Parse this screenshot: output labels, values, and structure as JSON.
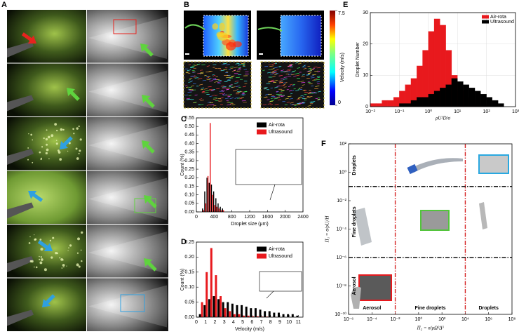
{
  "panel_labels": [
    "A",
    "B",
    "C",
    "D",
    "E",
    "F"
  ],
  "panel_b": {
    "colorbar_label": "Velocity (m/s)",
    "colorbar_ticks": [
      7.5,
      0
    ]
  },
  "chart_data": [
    {
      "type": "bar",
      "xlabel": "Droplet size (μm)",
      "ylabel": "Count (%)",
      "x": [
        150,
        200,
        250,
        300,
        350,
        400,
        450,
        500,
        550,
        600
      ],
      "series": [
        {
          "name": "Air-rota",
          "color": "#000000",
          "values": [
            0.02,
            0.12,
            0.2,
            0.17,
            0.16,
            0.12,
            0.08,
            0.05,
            0.03,
            0.02
          ]
        },
        {
          "name": "Ultrasound",
          "color": "#e8191d",
          "values": [
            0.01,
            0.05,
            0.21,
            0.52,
            0.1,
            0.04,
            0.03,
            0.02,
            0.01,
            0.01
          ]
        }
      ],
      "xlim": [
        0,
        2400
      ],
      "xticks": [
        0,
        400,
        800,
        1200,
        1600,
        2000,
        2400
      ],
      "ylim": [
        0,
        0.55
      ],
      "yticks": [
        {
          "value": 0,
          "label": "0.00"
        },
        {
          "value": 0.05,
          "label": "0.05"
        },
        {
          "value": 0.1,
          "label": "0.10"
        },
        {
          "value": 0.15,
          "label": "0.15"
        },
        {
          "value": 0.2,
          "label": "0.20"
        },
        {
          "value": 0.25,
          "label": "0.25"
        },
        {
          "value": 0.3,
          "label": "0.30"
        },
        {
          "value": 0.35,
          "label": "0.35"
        },
        {
          "value": 0.4,
          "label": "0.40"
        },
        {
          "value": 0.45,
          "label": "0.45"
        },
        {
          "value": 0.5,
          "label": "0.50"
        },
        {
          "value": 0.55,
          "label": "0.55"
        }
      ],
      "legend": "upper right"
    },
    {
      "type": "bar",
      "xlabel": "Velocity (m/s)",
      "ylabel": "Count (%)",
      "x": [
        0.5,
        1,
        1.5,
        2,
        2.5,
        3,
        3.5,
        4,
        4.5,
        5,
        5.5,
        6,
        6.5,
        7,
        7.5,
        8,
        8.5,
        9,
        9.5,
        10,
        10.5,
        11
      ],
      "series": [
        {
          "name": "Air-rota",
          "color": "#000000",
          "values": [
            0.01,
            0.04,
            0.06,
            0.07,
            0.06,
            0.05,
            0.05,
            0.045,
            0.04,
            0.04,
            0.035,
            0.03,
            0.03,
            0.025,
            0.02,
            0.02,
            0.015,
            0.015,
            0.01,
            0.01,
            0.01,
            0.005
          ]
        },
        {
          "name": "Ultrasound",
          "color": "#e8191d",
          "values": [
            0.05,
            0.15,
            0.23,
            0.14,
            0.07,
            0.03,
            0.02,
            0.01,
            0.01,
            0.005,
            0.005,
            0.003,
            0.003,
            0.002,
            0.002,
            0.001,
            0.001,
            0,
            0,
            0,
            0,
            0
          ]
        }
      ],
      "xlim": [
        0,
        11.5
      ],
      "xticks": [
        0,
        1,
        2,
        3,
        4,
        5,
        6,
        7,
        8,
        9,
        10,
        11
      ],
      "ylim": [
        0,
        0.25
      ],
      "yticks": [
        {
          "value": 0,
          "label": "0.00"
        },
        {
          "value": 0.05,
          "label": "0.05"
        },
        {
          "value": 0.1,
          "label": "0.10"
        },
        {
          "value": 0.15,
          "label": "0.15"
        },
        {
          "value": 0.2,
          "label": "0.20"
        },
        {
          "value": 0.25,
          "label": "0.25"
        }
      ],
      "legend": "upper right"
    },
    {
      "type": "histogram",
      "xlabel": "ρU²D/σ",
      "ylabel": "Droplet Number",
      "xscale": "log",
      "grid": true,
      "bins": [
        0.01,
        0.0158,
        0.0251,
        0.0398,
        0.0631,
        0.1,
        0.158,
        0.251,
        0.398,
        0.631,
        1,
        1.58,
        2.51,
        3.98,
        6.31,
        10,
        15.8,
        25.1,
        39.8,
        63.1,
        100,
        158,
        251,
        398
      ],
      "series": [
        {
          "name": "Air-rota",
          "color": "#e8191d",
          "values": [
            1,
            1,
            2,
            2,
            3,
            5,
            7,
            9,
            13,
            18,
            24,
            28,
            26,
            18,
            10,
            5,
            3,
            2,
            1,
            1,
            0,
            0,
            0
          ]
        },
        {
          "name": "Ultrasound",
          "color": "#000000",
          "values": [
            0,
            0,
            0,
            0,
            0,
            1,
            1,
            2,
            3,
            3,
            4,
            5,
            6,
            7,
            9,
            8,
            7,
            6,
            5,
            4,
            3,
            2,
            1
          ]
        }
      ],
      "xlim": [
        0.01,
        1000
      ],
      "xticks": [
        {
          "value": 0.01,
          "label": "10⁻²"
        },
        {
          "value": 0.1,
          "label": "10⁻¹"
        },
        {
          "value": 1,
          "label": "10⁰"
        },
        {
          "value": 10,
          "label": "10¹"
        },
        {
          "value": 100,
          "label": "10²"
        },
        {
          "value": 1000,
          "label": "10³"
        }
      ],
      "ylim": [
        0,
        30
      ],
      "yticks": [
        0,
        10,
        20,
        30
      ],
      "legend": "upper right"
    },
    {
      "type": "regime_map",
      "xlabel": "Π₂ = σ/ρΩ²Δ³",
      "ylabel": "Π₁ = σ/ρUⱼ²H",
      "xscale": "log",
      "yscale": "log",
      "xlim": [
        1e-06,
        100000000.0
      ],
      "xticks": [
        {
          "value": 1e-06,
          "label": "10⁻⁶"
        },
        {
          "value": 0.0001,
          "label": "10⁻⁴"
        },
        {
          "value": 0.01,
          "label": "10⁻²"
        },
        {
          "value": 1,
          "label": "10⁰"
        },
        {
          "value": 100,
          "label": "10²"
        },
        {
          "value": 10000,
          "label": "10⁴"
        },
        {
          "value": 1000000.0,
          "label": "10⁶"
        },
        {
          "value": 100000000.0,
          "label": "10⁸"
        }
      ],
      "ylim": [
        1e-10,
        100
      ],
      "yticks": [
        {
          "value": 1e-10,
          "label": "10⁻¹⁰"
        },
        {
          "value": 1e-08,
          "label": "10⁻⁸"
        },
        {
          "value": 1e-06,
          "label": "10⁻⁶"
        },
        {
          "value": 0.0001,
          "label": "10⁻⁴"
        },
        {
          "value": 0.01,
          "label": "10⁻²"
        },
        {
          "value": 1,
          "label": "10⁰"
        },
        {
          "value": 100,
          "label": "10²"
        }
      ],
      "x_boundaries": [
        0.01,
        10000
      ],
      "y_boundaries": [
        0.1,
        1e-06
      ],
      "row_labels": [
        "Droplets",
        "Fine droplets",
        "Aerosol"
      ],
      "column_labels": [
        "Aerosol",
        "Fine droplets",
        "Droplets"
      ]
    }
  ]
}
